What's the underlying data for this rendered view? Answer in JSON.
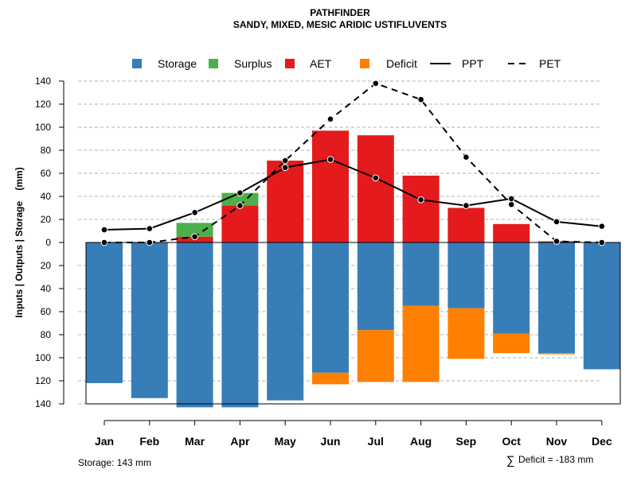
{
  "chart_data": {
    "type": "bar",
    "title": "PATHFINDER",
    "subtitle": "SANDY, MIXED, MESIC ARIDIC USTIFLUVENTS",
    "ylabel": "Inputs | Outputs | Storage    (mm)",
    "ylim": [
      -140,
      140
    ],
    "yticks": [
      140,
      120,
      100,
      80,
      60,
      40,
      20,
      0,
      -20,
      -40,
      -60,
      -80,
      -100,
      -120,
      -140
    ],
    "ytick_labels": [
      "140",
      "120",
      "100",
      "80",
      "60",
      "40",
      "20",
      "0",
      "20",
      "40",
      "60",
      "80",
      "100",
      "120",
      "140"
    ],
    "grid": true,
    "legend_position": "top",
    "categories": [
      "Jan",
      "Feb",
      "Mar",
      "Apr",
      "May",
      "Jun",
      "Jul",
      "Aug",
      "Sep",
      "Oct",
      "Nov",
      "Dec"
    ],
    "series": [
      {
        "name": "Storage",
        "color": "#377EB8",
        "kind": "bar-below",
        "values": [
          122,
          135,
          143,
          143,
          137,
          113,
          76,
          55,
          57,
          79,
          96,
          110
        ]
      },
      {
        "name": "Surplus",
        "color": "#4DAF4A",
        "kind": "bar-above-stacked",
        "values": [
          0,
          0,
          12,
          11,
          0,
          0,
          0,
          0,
          0,
          0,
          0,
          0
        ]
      },
      {
        "name": "AET",
        "color": "#E41A1C",
        "kind": "bar-above",
        "values": [
          0,
          0,
          5,
          32,
          71,
          97,
          93,
          58,
          30,
          16,
          1,
          0
        ]
      },
      {
        "name": "Deficit",
        "color": "#FF7F00",
        "kind": "bar-below-stacked",
        "values": [
          0,
          0,
          0,
          0,
          0,
          10,
          45,
          66,
          44,
          17,
          1,
          0
        ]
      },
      {
        "name": "PPT",
        "color": "#000000",
        "kind": "line-solid",
        "values": [
          11,
          12,
          26,
          43,
          65,
          72,
          56,
          37,
          32,
          38,
          18,
          14
        ]
      },
      {
        "name": "PET",
        "color": "#000000",
        "kind": "line-dashed",
        "values": [
          0,
          0,
          5,
          32,
          71,
          107,
          138,
          124,
          74,
          33,
          1,
          0
        ]
      }
    ],
    "annotations": {
      "storage_text": "Storage: 143 mm",
      "deficit_symbol": "∑",
      "deficit_text": "Deficit = -183 mm"
    }
  }
}
